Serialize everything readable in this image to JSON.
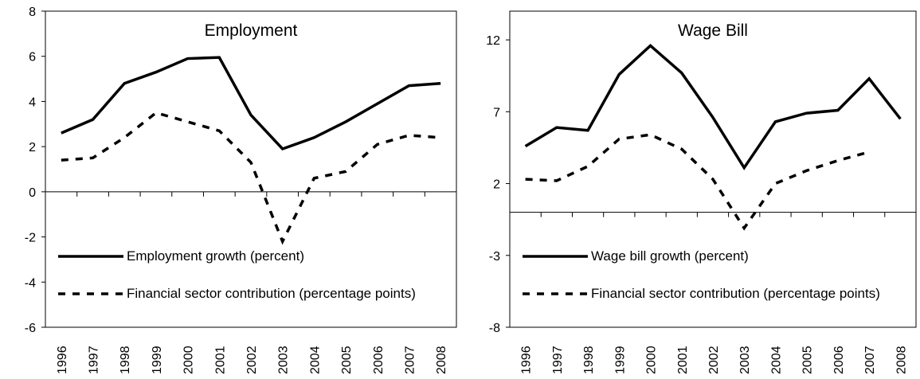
{
  "chart_data": [
    {
      "type": "line",
      "title": "Employment",
      "categories": [
        "1996",
        "1997",
        "1998",
        "1999",
        "2000",
        "2001",
        "2002",
        "2003",
        "2004",
        "2005",
        "2006",
        "2007",
        "2008"
      ],
      "series": [
        {
          "name": "Employment growth (percent)",
          "color": "#000000",
          "dash": false,
          "values": [
            2.6,
            3.2,
            4.8,
            5.3,
            5.9,
            5.95,
            3.4,
            1.9,
            2.4,
            3.1,
            3.9,
            4.7,
            4.8
          ]
        },
        {
          "name": "Financial sector contribution (percentage points)",
          "color": "#000000",
          "dash": true,
          "values": [
            1.4,
            1.5,
            2.4,
            3.5,
            3.1,
            2.7,
            1.3,
            -2.2,
            0.6,
            0.9,
            2.1,
            2.5,
            2.4
          ]
        }
      ],
      "ylim": [
        -6,
        8
      ],
      "yticks": [
        -6,
        -4,
        -2,
        0,
        2,
        4,
        6,
        8
      ]
    },
    {
      "type": "line",
      "title": "Wage Bill",
      "categories": [
        "1996",
        "1997",
        "1998",
        "1999",
        "2000",
        "2001",
        "2002",
        "2003",
        "2004",
        "2005",
        "2006",
        "2007",
        "2008"
      ],
      "series": [
        {
          "name": "Wage bill growth (percent)",
          "color": "#000000",
          "dash": false,
          "values": [
            4.6,
            5.9,
            5.7,
            9.6,
            11.6,
            9.7,
            6.6,
            3.1,
            6.3,
            6.9,
            7.1,
            9.3,
            6.5
          ]
        },
        {
          "name": "Financial sector contribution (percentage points)",
          "color": "#000000",
          "dash": true,
          "values": [
            2.3,
            2.2,
            3.2,
            5.1,
            5.4,
            4.4,
            2.3,
            -1.1,
            2.0,
            2.9,
            3.6,
            4.2,
            null
          ]
        }
      ],
      "ylim": [
        -8,
        14
      ],
      "yticks": [
        -8,
        -3,
        2,
        7,
        12
      ]
    }
  ]
}
